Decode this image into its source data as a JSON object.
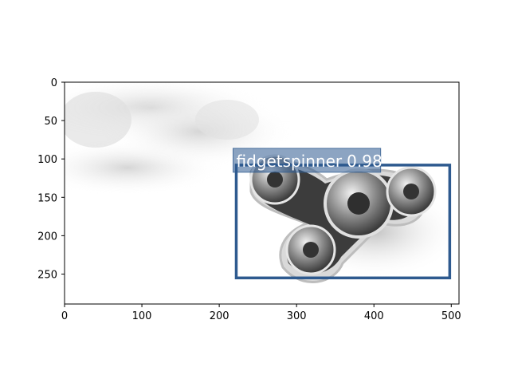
{
  "image": {
    "subject": "fidget-spinner",
    "width": 510,
    "height": 289,
    "xlim": [
      0,
      510
    ],
    "ylim": [
      289,
      0
    ]
  },
  "axes": {
    "x_ticks": [
      0,
      100,
      200,
      300,
      400,
      500
    ],
    "y_ticks": [
      0,
      50,
      100,
      150,
      200,
      250
    ]
  },
  "detections": [
    {
      "label": "fidgetspinner",
      "score": "0.98",
      "box": {
        "x0": 222,
        "y0": 108,
        "x1": 498,
        "y1": 255
      },
      "color": "#2e5a8f"
    }
  ]
}
